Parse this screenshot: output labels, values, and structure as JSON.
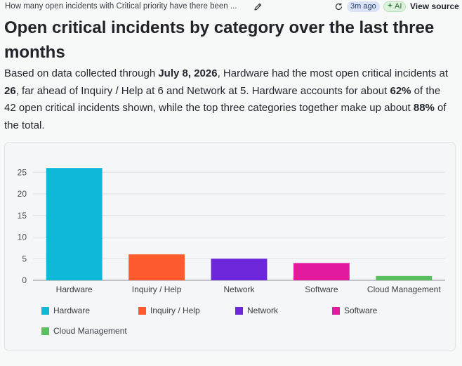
{
  "header": {
    "question": "How many open incidents with Critical priority have there been ...",
    "time_ago": "3m ago",
    "ai_label": "AI",
    "view_source": "View source",
    "icons": {
      "edit": "pencil-icon",
      "refresh": "refresh-icon",
      "ai": "sparkle-icon"
    }
  },
  "title": "Open critical incidents by category over the last three months",
  "summary": {
    "p1": "Based on data collected through ",
    "b1": "July 8, 2026",
    "p2": ", Hardware had the most open critical incidents at ",
    "b2": "26",
    "p3": ", far ahead of Inquiry / Help at 6 and Network at 5. Hardware accounts for about ",
    "b3": "62%",
    "p4": " of the 42 open critical incidents shown, while the top three categories together make up about ",
    "b4": "88%",
    "p5": " of the total."
  },
  "chart_data": {
    "type": "bar",
    "categories": [
      "Hardware",
      "Inquiry / Help",
      "Network",
      "Software",
      "Cloud Management"
    ],
    "values": [
      26,
      6,
      5,
      4,
      1
    ],
    "colors": [
      "#0fb8d9",
      "#ff5a2e",
      "#6d27db",
      "#e31aa0",
      "#5cbf5f"
    ],
    "ylim": [
      0,
      27
    ],
    "yticks": [
      0,
      5,
      10,
      15,
      20,
      25
    ],
    "grid": true,
    "legend": "bottom",
    "legend_items": [
      "Hardware",
      "Inquiry / Help",
      "Network",
      "Software",
      "Cloud Management"
    ]
  }
}
